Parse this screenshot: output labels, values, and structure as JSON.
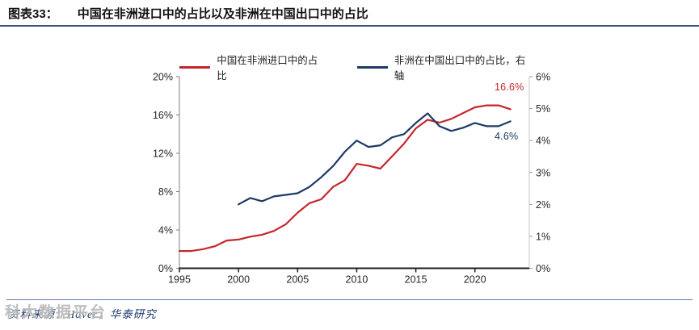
{
  "header": {
    "figure_label": "图表33：",
    "title": "中国在非洲进口中的占比以及非洲在中国出口中的占比"
  },
  "legend": [
    {
      "label": "中国在非洲进口中的占比",
      "color": "#c5262c"
    },
    {
      "label": "非洲在中国出口中的占比，右轴",
      "color": "#1f3a66"
    }
  ],
  "chart_data": {
    "type": "line",
    "title": "中国在非洲进口中的占比以及非洲在中国出口中的占比",
    "grid": false,
    "legend_position": "top",
    "x_range": [
      1995,
      2024.6
    ],
    "x_ticks": [
      "1995",
      "2000",
      "2005",
      "2010",
      "2015",
      "2020"
    ],
    "left_axis": {
      "min": 0,
      "max": 20,
      "ticks": [
        "0%",
        "4%",
        "8%",
        "12%",
        "16%",
        "20%"
      ]
    },
    "right_axis": {
      "min": 0,
      "max": 6,
      "ticks": [
        "0%",
        "1%",
        "2%",
        "3%",
        "4%",
        "5%",
        "6%"
      ]
    },
    "series": [
      {
        "name": "中国在非洲进口中的占比",
        "axis": "left",
        "color": "#c5262c",
        "start_year": 1995,
        "values": [
          1.8,
          1.8,
          2.0,
          2.3,
          2.9,
          3.0,
          3.3,
          3.5,
          3.9,
          4.6,
          5.8,
          6.8,
          7.2,
          8.5,
          9.2,
          10.9,
          10.7,
          10.4,
          11.7,
          13.0,
          14.6,
          15.5,
          15.2,
          15.6,
          16.2,
          16.8,
          17.0,
          17.0,
          16.6
        ]
      },
      {
        "name": "非洲在中国出口中的占比，右轴",
        "axis": "right",
        "color": "#1f3a66",
        "start_year": 2000,
        "values": [
          2.0,
          2.2,
          2.1,
          2.25,
          2.3,
          2.35,
          2.55,
          2.85,
          3.2,
          3.65,
          4.0,
          3.8,
          3.85,
          4.1,
          4.2,
          4.55,
          4.85,
          4.45,
          4.3,
          4.4,
          4.55,
          4.45,
          4.45,
          4.6
        ]
      }
    ],
    "end_labels": [
      {
        "text": "16.6%",
        "series": "中国在非洲进口中的占比",
        "color": "#c5262c"
      },
      {
        "text": "4.6%",
        "series": "非洲在中国出口中的占比，右轴",
        "color": "#1f3a66"
      }
    ]
  },
  "footer": {
    "source": "资料来源：Haver，华泰研究",
    "watermark": "科大数据平台"
  },
  "colors": {
    "red_series": "#c5262c",
    "blue_series": "#1f3a66",
    "header_rule": "#3f4f79",
    "footer_rule": "#64789f",
    "left_axis": "#7f7f7f",
    "right_axis": "#c6c6c6",
    "bottom_axis": "#1f1f1f"
  }
}
